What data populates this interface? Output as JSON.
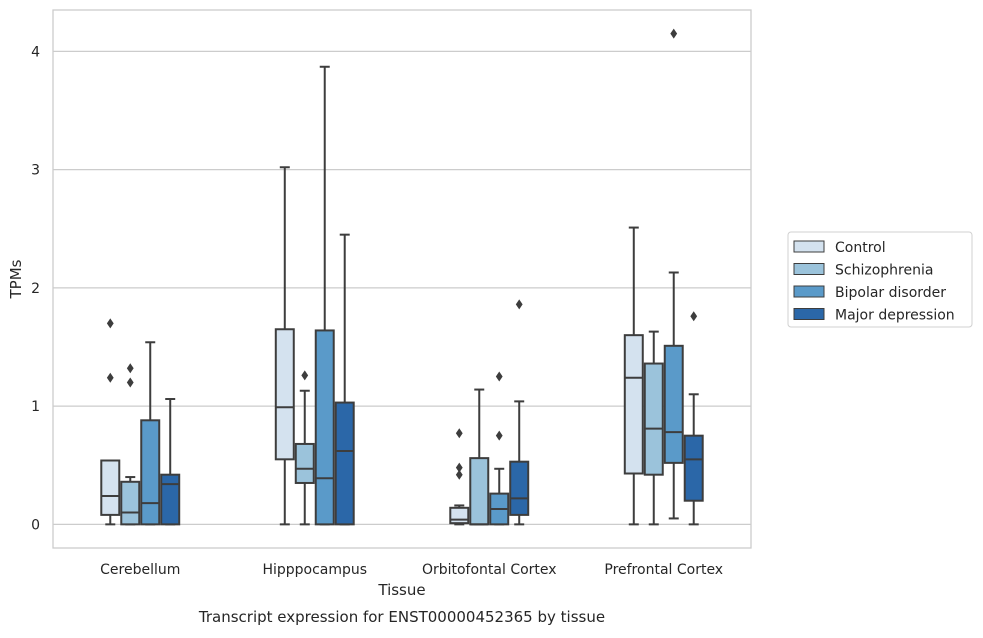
{
  "chart_data": {
    "type": "box",
    "title": "",
    "caption": "Transcript expression for ENST00000452365 by tissue",
    "xlabel": "Tissue",
    "ylabel": "TPMs",
    "ylim": [
      -0.2,
      4.35
    ],
    "yticks": [
      0,
      1,
      2,
      3,
      4
    ],
    "grid": "horizontal",
    "legend_position": "right",
    "categories": [
      "Cerebellum",
      "Hipppocampus",
      "Orbitofontal Cortex",
      "Prefrontal Cortex"
    ],
    "series": [
      {
        "name": "Control",
        "color": "#d4e2ef",
        "boxes": [
          {
            "whisker_low": 0,
            "q1": 0.08,
            "median": 0.24,
            "q3": 0.54,
            "whisker_high": 0.54,
            "outliers": [
              1.24,
              1.7
            ]
          },
          {
            "whisker_low": 0,
            "q1": 0.55,
            "median": 0.99,
            "q3": 1.65,
            "whisker_high": 3.02,
            "outliers": []
          },
          {
            "whisker_low": 0,
            "q1": 0.01,
            "median": 0.04,
            "q3": 0.14,
            "whisker_high": 0.16,
            "outliers": [
              0.42,
              0.48,
              0.77
            ]
          },
          {
            "whisker_low": 0,
            "q1": 0.43,
            "median": 1.24,
            "q3": 1.6,
            "whisker_high": 2.51,
            "outliers": []
          }
        ]
      },
      {
        "name": "Schizophrenia",
        "color": "#9bc3db",
        "boxes": [
          {
            "whisker_low": 0,
            "q1": 0.0,
            "median": 0.1,
            "q3": 0.36,
            "whisker_high": 0.4,
            "outliers": [
              1.2,
              1.32
            ]
          },
          {
            "whisker_low": 0,
            "q1": 0.35,
            "median": 0.47,
            "q3": 0.68,
            "whisker_high": 1.13,
            "outliers": [
              1.26
            ]
          },
          {
            "whisker_low": 0,
            "q1": 0.0,
            "median": 0.0,
            "q3": 0.56,
            "whisker_high": 1.14,
            "outliers": []
          },
          {
            "whisker_low": 0,
            "q1": 0.42,
            "median": 0.81,
            "q3": 1.36,
            "whisker_high": 1.63,
            "outliers": []
          }
        ]
      },
      {
        "name": "Bipolar disorder",
        "color": "#5a9ac9",
        "boxes": [
          {
            "whisker_low": 0,
            "q1": 0.0,
            "median": 0.18,
            "q3": 0.88,
            "whisker_high": 1.54,
            "outliers": []
          },
          {
            "whisker_low": 0,
            "q1": 0.0,
            "median": 0.39,
            "q3": 1.64,
            "whisker_high": 3.87,
            "outliers": []
          },
          {
            "whisker_low": 0,
            "q1": 0.0,
            "median": 0.13,
            "q3": 0.26,
            "whisker_high": 0.47,
            "outliers": [
              0.75,
              1.25
            ]
          },
          {
            "whisker_low": 0.05,
            "q1": 0.52,
            "median": 0.78,
            "q3": 1.51,
            "whisker_high": 2.13,
            "outliers": [
              4.15
            ]
          }
        ]
      },
      {
        "name": "Major depression",
        "color": "#2b67a8",
        "boxes": [
          {
            "whisker_low": 0,
            "q1": 0.0,
            "median": 0.34,
            "q3": 0.42,
            "whisker_high": 1.06,
            "outliers": []
          },
          {
            "whisker_low": 0,
            "q1": 0.0,
            "median": 0.62,
            "q3": 1.03,
            "whisker_high": 2.45,
            "outliers": []
          },
          {
            "whisker_low": 0,
            "q1": 0.08,
            "median": 0.22,
            "q3": 0.53,
            "whisker_high": 1.04,
            "outliers": [
              1.86
            ]
          },
          {
            "whisker_low": 0,
            "q1": 0.2,
            "median": 0.55,
            "q3": 0.75,
            "whisker_high": 1.1,
            "outliers": [
              1.76
            ]
          }
        ]
      }
    ]
  }
}
